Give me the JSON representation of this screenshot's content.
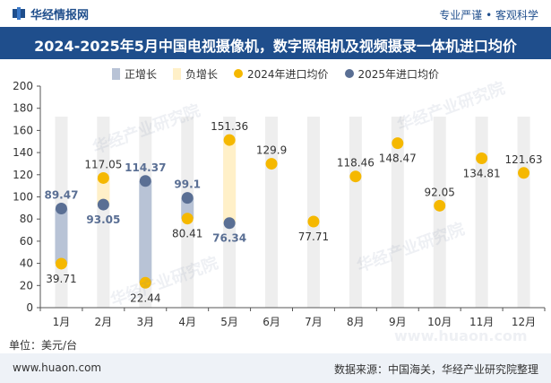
{
  "header": {
    "brand": "华经情报网",
    "tagline": "专业严谨 • 客观科学"
  },
  "title": "2024-2025年5月中国电视摄像机，数字照相机及视频摄录一体机进口均价",
  "legend": {
    "positive": "正增长",
    "negative": "负增长",
    "series2024": "2024年进口均价",
    "series2025": "2025年进口均价"
  },
  "unit": "单位：美元/台",
  "footer": {
    "site": "www.huaon.com",
    "source": "数据来源：中国海关，华经产业研究院整理"
  },
  "watermarks": [
    "华经产业研究院",
    "华经产业研究院",
    "华经产业研究院",
    "华经产业研究院"
  ],
  "watermark_url": "www.huaon.com",
  "colors": {
    "brand": "#1f4e8c",
    "positive": "#b8c3d6",
    "negative": "#fff0c8",
    "series2024": "#f5b800",
    "series2025": "#5a6f94",
    "column": "#eeeeee"
  },
  "chart_data": {
    "type": "scatter",
    "categories": [
      "1月",
      "2月",
      "3月",
      "4月",
      "5月",
      "6月",
      "7月",
      "8月",
      "9月",
      "10月",
      "11月",
      "12月"
    ],
    "ylim": [
      0,
      200
    ],
    "yticks": [
      0,
      20,
      40,
      60,
      80,
      100,
      120,
      140,
      160,
      180,
      200
    ],
    "grid": false,
    "legend_position": "top",
    "series": [
      {
        "name": "2024年进口均价",
        "values": [
          39.71,
          117.05,
          22.44,
          80.41,
          151.36,
          129.9,
          77.71,
          118.46,
          148.47,
          92.05,
          134.81,
          121.63
        ]
      },
      {
        "name": "2025年进口均价",
        "values": [
          89.47,
          93.05,
          114.37,
          99.1,
          76.34,
          null,
          null,
          null,
          null,
          null,
          null,
          null
        ]
      }
    ]
  }
}
